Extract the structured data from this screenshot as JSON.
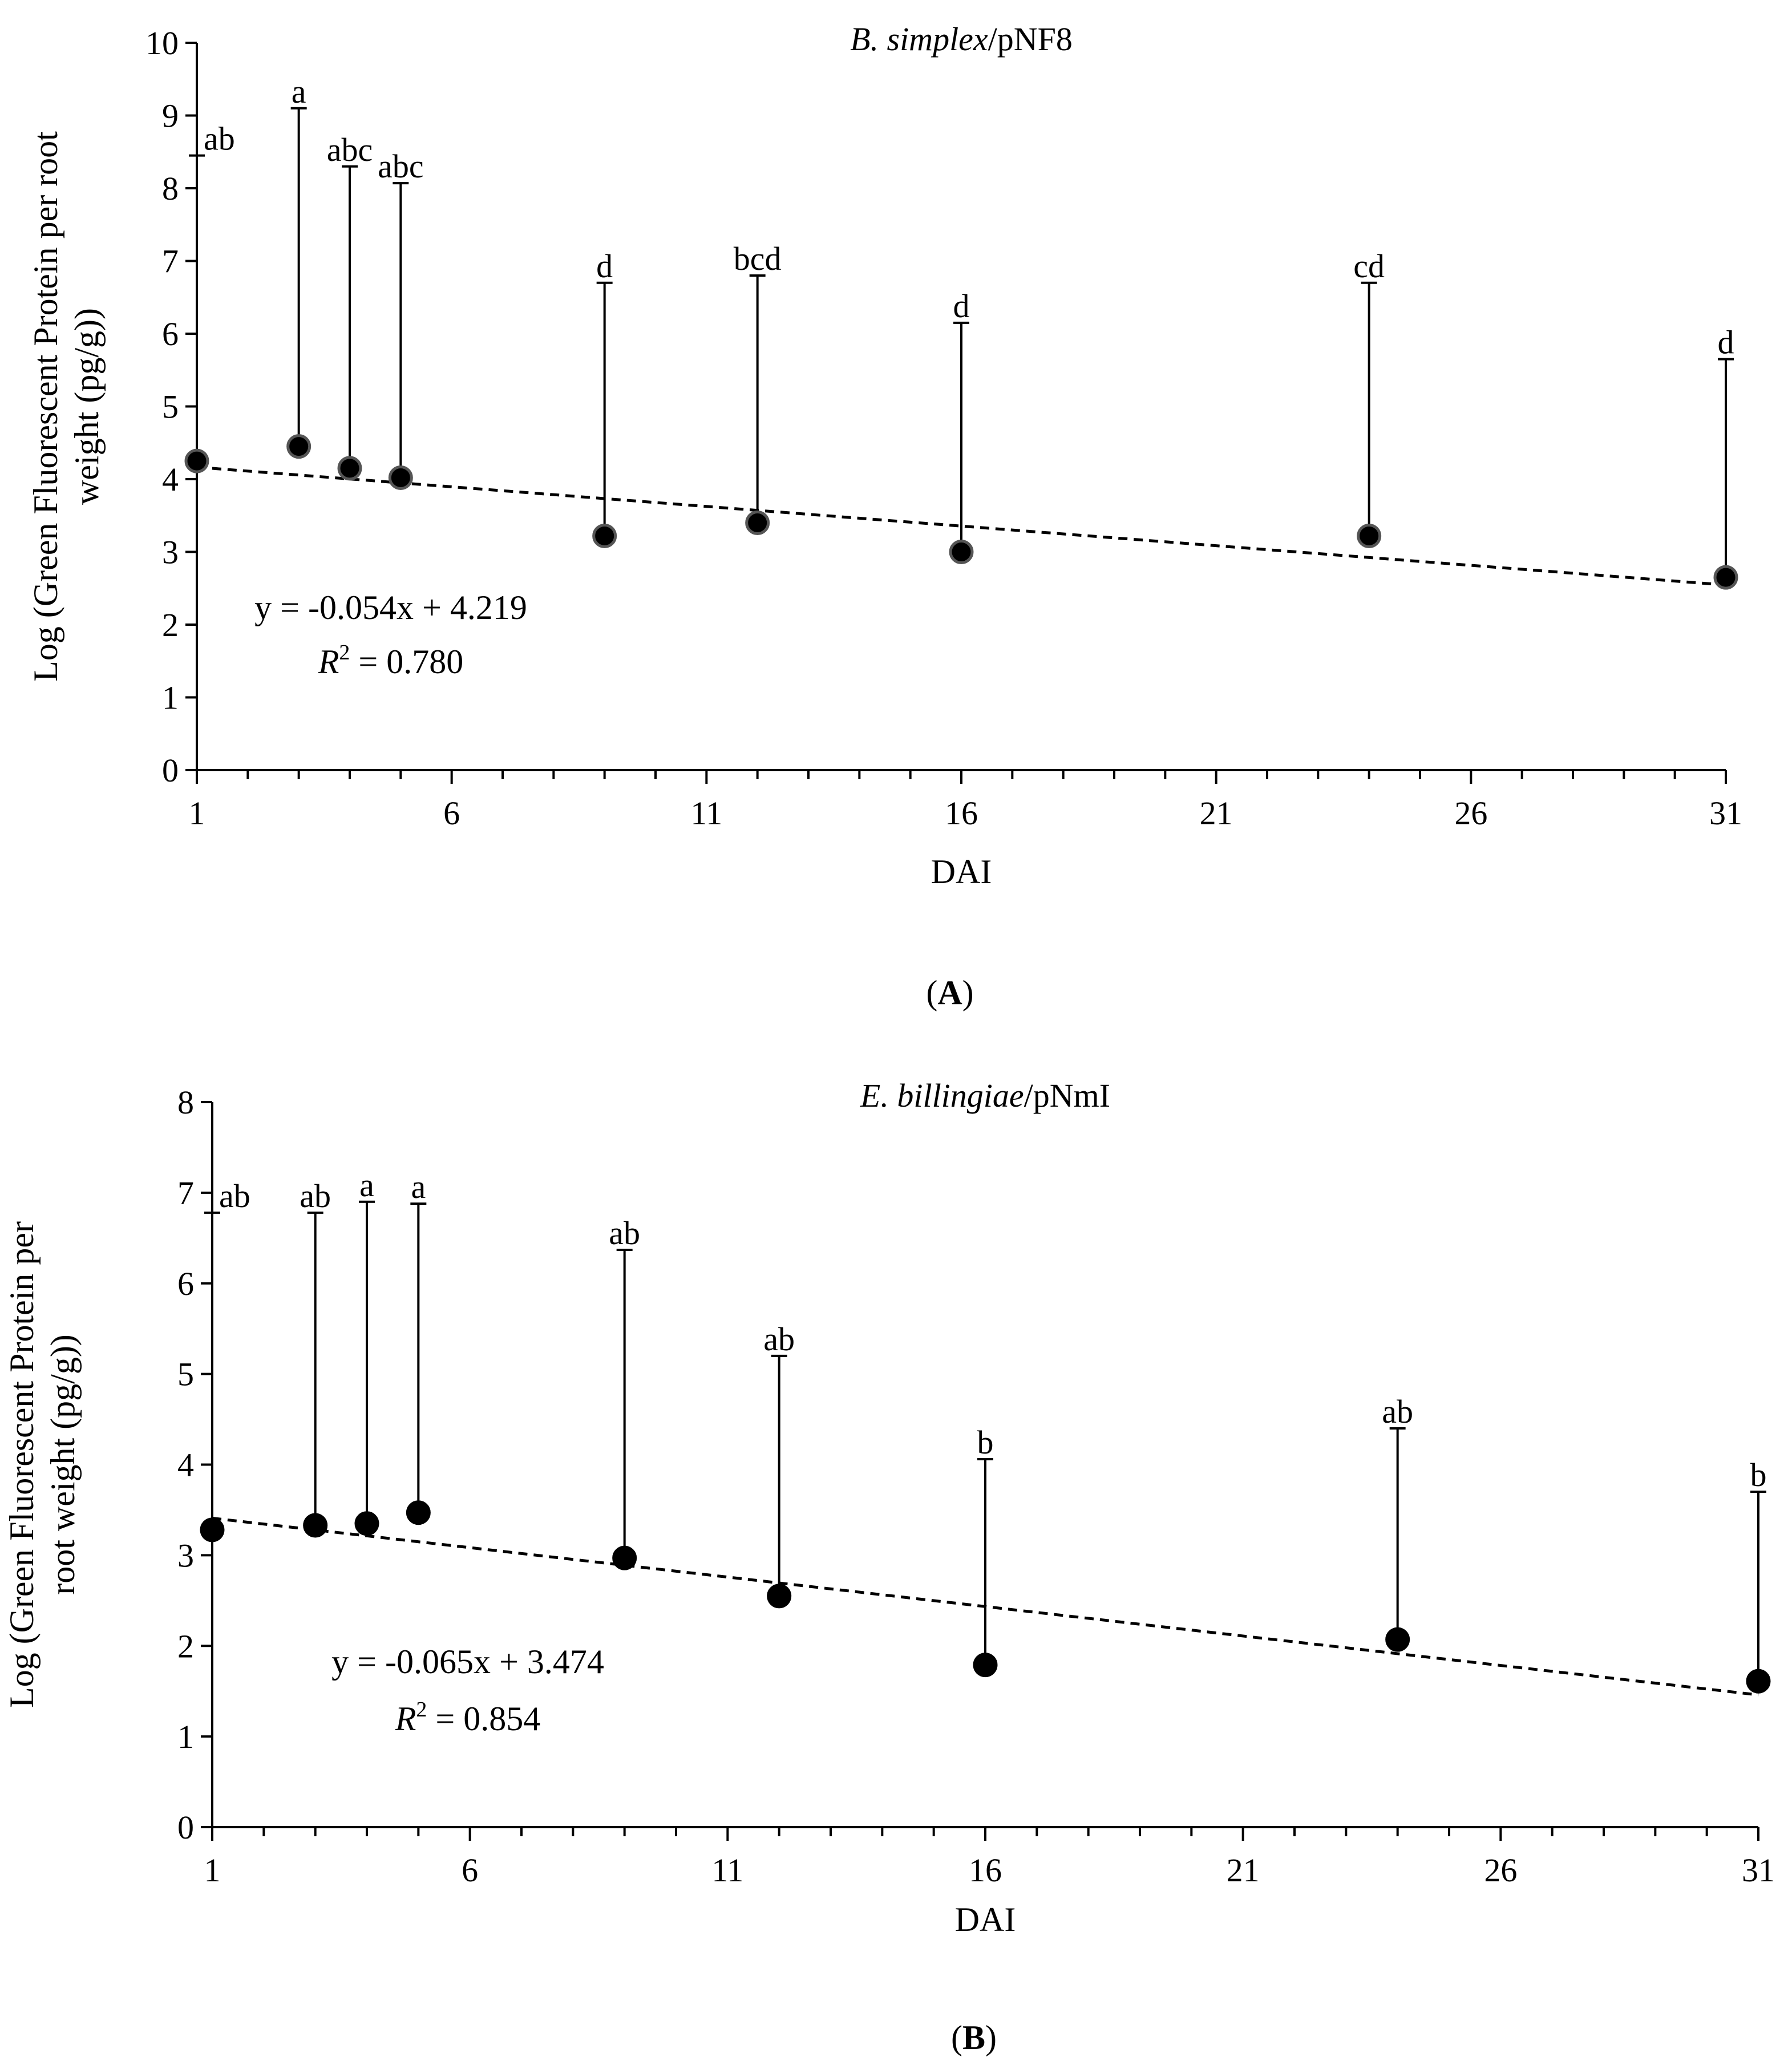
{
  "chart_data": [
    {
      "type": "scatter",
      "panel_label": "A",
      "title_italic": "B. simplex",
      "title_rest": "/pNF8",
      "xlabel": "DAI",
      "ylabel_lines": [
        "Log (Green Fluorescent Protein per root",
        "weight (pg/g))"
      ],
      "xlim": [
        1,
        31
      ],
      "ylim": [
        0,
        10
      ],
      "xticks": [
        1,
        6,
        11,
        16,
        21,
        26,
        31
      ],
      "yticks": [
        0,
        1,
        2,
        3,
        4,
        5,
        6,
        7,
        8,
        9,
        10
      ],
      "points": [
        {
          "x": 1,
          "y": 4.25,
          "upper": 8.45,
          "label": "ab"
        },
        {
          "x": 3,
          "y": 4.45,
          "upper": 9.1,
          "label": "a"
        },
        {
          "x": 4,
          "y": 4.15,
          "upper": 8.3,
          "label": "abc"
        },
        {
          "x": 5,
          "y": 4.02,
          "upper": 8.07,
          "label": "abc"
        },
        {
          "x": 9,
          "y": 3.22,
          "upper": 6.7,
          "label": "d"
        },
        {
          "x": 12,
          "y": 3.4,
          "upper": 6.8,
          "label": "bcd"
        },
        {
          "x": 16,
          "y": 3.0,
          "upper": 6.15,
          "label": "d"
        },
        {
          "x": 24,
          "y": 3.22,
          "upper": 6.7,
          "label": "cd"
        },
        {
          "x": 31,
          "y": 2.65,
          "upper": 5.65,
          "label": "d"
        }
      ],
      "trendline": {
        "slope": -0.054,
        "intercept": 4.219,
        "x_range": [
          1,
          31
        ],
        "style": "dashed"
      },
      "equation": "y = -0.054x + 4.219",
      "r2_label": "R",
      "r2_sup": "2",
      "r2_value": " = 0.780",
      "grid": false,
      "legend": "none",
      "marker_color": "#000000",
      "marker_edge": "#555555"
    },
    {
      "type": "scatter",
      "panel_label": "B",
      "title_italic": "E. billingiae",
      "title_rest": "/pNmI",
      "xlabel": "DAI",
      "ylabel_lines": [
        "Log (Green Fluorescent Protein per",
        "root weight (pg/g))"
      ],
      "xlim": [
        1,
        31
      ],
      "ylim": [
        0,
        8
      ],
      "xticks": [
        1,
        6,
        11,
        16,
        21,
        26,
        31
      ],
      "yticks": [
        0,
        1,
        2,
        3,
        4,
        5,
        6,
        7,
        8
      ],
      "points": [
        {
          "x": 1,
          "y": 3.28,
          "upper": 6.78,
          "label": "ab"
        },
        {
          "x": 3,
          "y": 3.33,
          "upper": 6.78,
          "label": "ab"
        },
        {
          "x": 4,
          "y": 3.35,
          "upper": 6.9,
          "label": "a"
        },
        {
          "x": 5,
          "y": 3.47,
          "upper": 6.88,
          "label": "a"
        },
        {
          "x": 9,
          "y": 2.97,
          "upper": 6.37,
          "label": "ab"
        },
        {
          "x": 12,
          "y": 2.55,
          "upper": 5.2,
          "label": "ab"
        },
        {
          "x": 16,
          "y": 1.79,
          "upper": 4.06,
          "label": "b"
        },
        {
          "x": 24,
          "y": 2.07,
          "upper": 4.4,
          "label": "ab"
        },
        {
          "x": 31,
          "y": 1.61,
          "upper": 3.7,
          "label": "b"
        }
      ],
      "trendline": {
        "slope": -0.065,
        "intercept": 3.474,
        "x_range": [
          1,
          31
        ],
        "style": "dashed"
      },
      "equation": "y = -0.065x + 3.474",
      "r2_label": "R",
      "r2_sup": "2",
      "r2_value": " = 0.854",
      "grid": false,
      "legend": "none",
      "marker_color": "#000000",
      "marker_edge": "#000000"
    }
  ]
}
